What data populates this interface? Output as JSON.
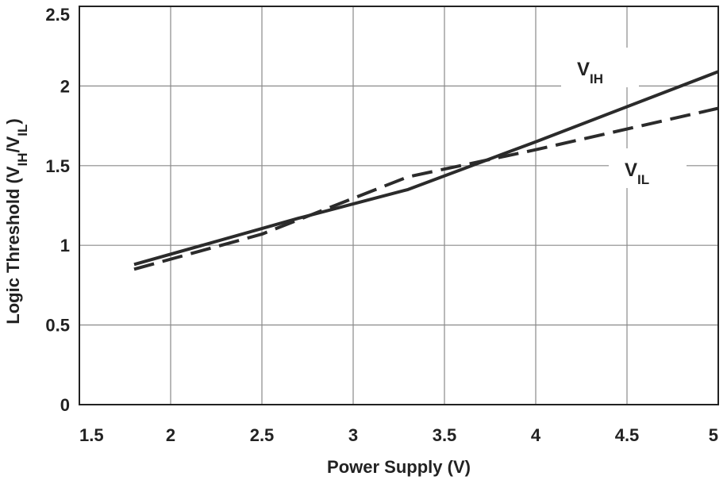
{
  "chart_data": {
    "type": "line",
    "title": "",
    "xlabel": "Power Supply (V)",
    "ylabel": {
      "main": "Logic Threshold (V",
      "sub1": "IH",
      "sep": "/V",
      "sub2": "IL",
      "end": ")"
    },
    "xlim": [
      1.5,
      5
    ],
    "ylim": [
      0,
      2.5
    ],
    "xticks": [
      1.5,
      2,
      2.5,
      3,
      3.5,
      4,
      4.5,
      5
    ],
    "xtick_labels": [
      "1.5",
      "2",
      "2.5",
      "3",
      "3.5",
      "4",
      "4.5",
      "5"
    ],
    "yticks": [
      0,
      0.5,
      1,
      1.5,
      2,
      2.5
    ],
    "ytick_labels": [
      "0",
      "0.5",
      "1",
      "1.5",
      "2",
      "2.5"
    ],
    "grid": true,
    "series": [
      {
        "name": "VIH",
        "label_main": "V",
        "label_sub": "IH",
        "style": "solid",
        "color": "#2b2b2b",
        "x": [
          1.8,
          2.7,
          3.3,
          4.0,
          5.0
        ],
        "y": [
          0.88,
          1.17,
          1.35,
          1.65,
          2.09
        ]
      },
      {
        "name": "VIL",
        "label_main": "V",
        "label_sub": "IL",
        "style": "dashed",
        "color": "#2b2b2b",
        "x": [
          1.8,
          2.5,
          3.3,
          4.0,
          5.0
        ],
        "y": [
          0.85,
          1.07,
          1.43,
          1.6,
          1.86
        ]
      }
    ]
  }
}
